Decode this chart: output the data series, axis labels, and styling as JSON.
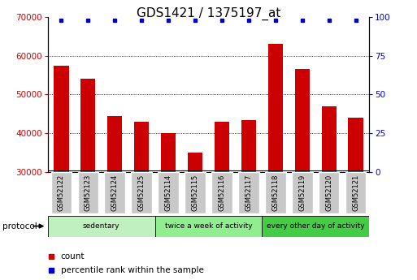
{
  "title": "GDS1421 / 1375197_at",
  "samples": [
    "GSM52122",
    "GSM52123",
    "GSM52124",
    "GSM52125",
    "GSM52114",
    "GSM52115",
    "GSM52116",
    "GSM52117",
    "GSM52118",
    "GSM52119",
    "GSM52120",
    "GSM52121"
  ],
  "counts": [
    57500,
    54000,
    44500,
    43000,
    40000,
    35000,
    43000,
    43500,
    63000,
    56500,
    47000,
    44000
  ],
  "baseline": 30000,
  "ylim_left": [
    30000,
    70000
  ],
  "ylim_right": [
    0,
    100
  ],
  "yticks_left": [
    30000,
    40000,
    50000,
    60000,
    70000
  ],
  "yticks_right": [
    0,
    25,
    50,
    75,
    100
  ],
  "bar_color": "#cc0000",
  "percentile_color": "#0000cc",
  "bar_width": 0.55,
  "groups": [
    {
      "label": "sedentary",
      "start": 0,
      "end": 4,
      "color": "#c0f0c0"
    },
    {
      "label": "twice a week of activity",
      "start": 4,
      "end": 8,
      "color": "#90ee90"
    },
    {
      "label": "every other day of activity",
      "start": 8,
      "end": 12,
      "color": "#44cc44"
    }
  ],
  "protocol_label": "protocol",
  "legend_count_label": "count",
  "legend_percentile_label": "percentile rank within the sample",
  "title_fontsize": 11,
  "axis_label_color_left": "#cc0000",
  "axis_label_color_right": "#0000cc",
  "sample_box_color": "#c8c8c8",
  "fig_width": 5.13,
  "fig_height": 3.45,
  "dpi": 100
}
